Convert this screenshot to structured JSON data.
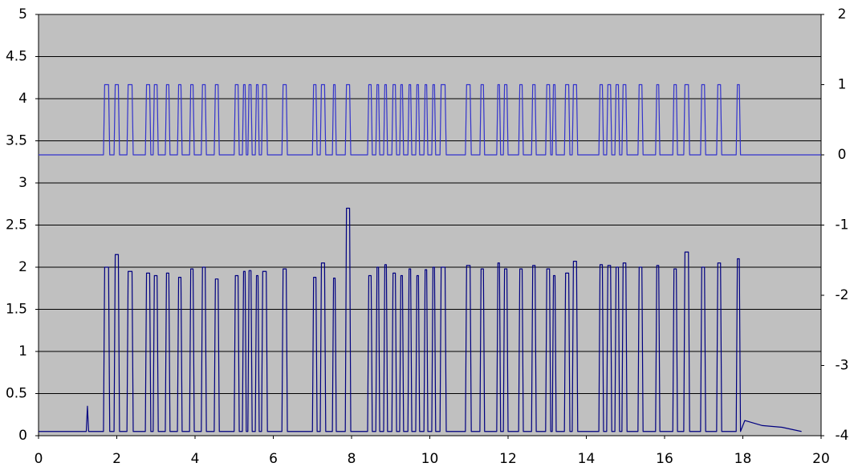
{
  "chart_data": {
    "type": "line",
    "x": [
      0,
      1.22,
      1.25,
      1.28,
      1.66,
      1.69,
      1.79,
      1.82,
      1.93,
      1.96,
      2.04,
      2.07,
      2.26,
      2.29,
      2.39,
      2.42,
      2.73,
      2.76,
      2.84,
      2.87,
      2.93,
      2.96,
      3.03,
      3.06,
      3.24,
      3.27,
      3.33,
      3.36,
      3.55,
      3.58,
      3.64,
      3.67,
      3.86,
      3.89,
      3.95,
      3.98,
      4.16,
      4.19,
      4.26,
      4.29,
      4.49,
      4.52,
      4.59,
      4.62,
      5.0,
      5.03,
      5.1,
      5.13,
      5.21,
      5.24,
      5.28,
      5.31,
      5.35,
      5.38,
      5.43,
      5.46,
      5.54,
      5.57,
      5.61,
      5.64,
      5.7,
      5.73,
      5.82,
      5.85,
      6.22,
      6.25,
      6.33,
      6.36,
      7.0,
      7.03,
      7.09,
      7.12,
      7.2,
      7.23,
      7.31,
      7.34,
      7.51,
      7.54,
      7.58,
      7.61,
      7.84,
      7.87,
      7.95,
      7.98,
      8.41,
      8.44,
      8.5,
      8.53,
      8.62,
      8.65,
      8.69,
      8.72,
      8.82,
      8.85,
      8.89,
      8.92,
      9.03,
      9.06,
      9.12,
      9.15,
      9.23,
      9.26,
      9.3,
      9.33,
      9.44,
      9.47,
      9.51,
      9.54,
      9.64,
      9.67,
      9.71,
      9.74,
      9.85,
      9.88,
      9.92,
      9.95,
      10.05,
      10.08,
      10.12,
      10.15,
      10.26,
      10.29,
      10.39,
      10.42,
      10.91,
      10.94,
      11.03,
      11.06,
      11.28,
      11.31,
      11.37,
      11.4,
      11.71,
      11.74,
      11.78,
      11.81,
      11.88,
      11.91,
      11.97,
      12.0,
      12.27,
      12.3,
      12.36,
      12.39,
      12.6,
      12.63,
      12.69,
      12.72,
      12.96,
      12.99,
      13.06,
      13.09,
      13.13,
      13.16,
      13.2,
      13.23,
      13.44,
      13.47,
      13.55,
      13.58,
      13.64,
      13.67,
      13.75,
      13.78,
      14.32,
      14.35,
      14.41,
      14.44,
      14.52,
      14.55,
      14.62,
      14.65,
      14.73,
      14.76,
      14.82,
      14.85,
      14.91,
      14.94,
      15.01,
      15.04,
      15.32,
      15.35,
      15.42,
      15.45,
      15.77,
      15.8,
      15.85,
      15.88,
      16.21,
      16.24,
      16.3,
      16.33,
      16.49,
      16.52,
      16.61,
      16.64,
      16.92,
      16.95,
      17.02,
      17.05,
      17.33,
      17.36,
      17.43,
      17.46,
      17.83,
      17.86,
      17.91,
      17.94,
      18.05,
      18.5,
      19,
      19.5,
      20
    ],
    "series": [
      {
        "color": "#000080",
        "values": [
          0.05,
          0.05,
          0.35,
          0.05,
          0.05,
          2.0,
          2.0,
          0.05,
          0.05,
          2.15,
          2.15,
          0.05,
          0.05,
          1.95,
          1.95,
          0.05,
          0.05,
          1.93,
          1.93,
          0.05,
          0.05,
          1.9,
          1.9,
          0.05,
          0.05,
          1.93,
          1.93,
          0.05,
          0.05,
          1.88,
          1.88,
          0.05,
          0.05,
          1.98,
          1.98,
          0.05,
          0.05,
          2.0,
          2.0,
          0.05,
          0.05,
          1.86,
          1.86,
          0.05,
          0.05,
          1.9,
          1.9,
          0.05,
          0.05,
          1.95,
          1.95,
          0.05,
          0.05,
          1.96,
          1.96,
          0.05,
          0.05,
          1.9,
          1.9,
          0.05,
          0.05,
          1.95,
          1.95,
          0.05,
          0.05,
          1.98,
          1.98,
          0.05,
          0.05,
          1.88,
          1.88,
          0.05,
          0.05,
          2.05,
          2.05,
          0.05,
          0.05,
          1.87,
          1.87,
          0.05,
          0.05,
          2.7,
          2.7,
          0.05,
          0.05,
          1.9,
          1.9,
          0.05,
          0.05,
          2.0,
          2.0,
          0.05,
          0.05,
          2.03,
          2.03,
          0.05,
          0.05,
          1.93,
          1.93,
          0.05,
          0.05,
          1.9,
          1.9,
          0.05,
          0.05,
          1.98,
          1.98,
          0.05,
          0.05,
          1.9,
          1.9,
          0.05,
          0.05,
          1.97,
          1.97,
          0.05,
          0.05,
          2.0,
          2.0,
          0.05,
          0.05,
          2.0,
          2.0,
          0.05,
          0.05,
          2.02,
          2.02,
          0.05,
          0.05,
          1.98,
          1.98,
          0.05,
          0.05,
          2.05,
          2.05,
          0.05,
          0.05,
          1.98,
          1.98,
          0.05,
          0.05,
          1.98,
          1.98,
          0.05,
          0.05,
          2.02,
          2.02,
          0.05,
          0.05,
          1.98,
          1.98,
          0.05,
          0.05,
          1.9,
          1.9,
          0.05,
          0.05,
          1.93,
          1.93,
          0.05,
          0.05,
          2.07,
          2.07,
          0.05,
          0.05,
          2.03,
          2.03,
          0.05,
          0.05,
          2.02,
          2.02,
          0.05,
          0.05,
          2.0,
          2.0,
          0.05,
          0.05,
          2.05,
          2.05,
          0.05,
          0.05,
          2.0,
          2.0,
          0.05,
          0.05,
          2.02,
          2.02,
          0.05,
          0.05,
          1.98,
          1.98,
          0.05,
          0.05,
          2.18,
          2.18,
          0.05,
          0.05,
          2.0,
          2.0,
          0.05,
          0.05,
          2.05,
          2.05,
          0.05,
          0.05,
          2.1,
          2.1,
          0.05,
          0.18,
          0.12,
          0.1,
          0.05,
          null
        ]
      },
      {
        "color": "#3333cc",
        "axis": "y2",
        "values": [
          0,
          0,
          0,
          0,
          0,
          1,
          1,
          0,
          0,
          1,
          1,
          0,
          0,
          1,
          1,
          0,
          0,
          1,
          1,
          0,
          0,
          1,
          1,
          0,
          0,
          1,
          1,
          0,
          0,
          1,
          1,
          0,
          0,
          1,
          1,
          0,
          0,
          1,
          1,
          0,
          0,
          1,
          1,
          0,
          0,
          1,
          1,
          0,
          0,
          1,
          1,
          0,
          0,
          1,
          1,
          0,
          0,
          1,
          1,
          0,
          0,
          1,
          1,
          0,
          0,
          1,
          1,
          0,
          0,
          1,
          1,
          0,
          0,
          1,
          1,
          0,
          0,
          1,
          1,
          0,
          0,
          1,
          1,
          0,
          0,
          1,
          1,
          0,
          0,
          1,
          1,
          0,
          0,
          1,
          1,
          0,
          0,
          1,
          1,
          0,
          0,
          1,
          1,
          0,
          0,
          1,
          1,
          0,
          0,
          1,
          1,
          0,
          0,
          1,
          1,
          0,
          0,
          1,
          1,
          0,
          0,
          1,
          1,
          0,
          0,
          1,
          1,
          0,
          0,
          1,
          1,
          0,
          0,
          1,
          1,
          0,
          0,
          1,
          1,
          0,
          0,
          1,
          1,
          0,
          0,
          1,
          1,
          0,
          0,
          1,
          1,
          0,
          0,
          1,
          1,
          0,
          0,
          1,
          1,
          0,
          0,
          1,
          1,
          0,
          0,
          1,
          1,
          0,
          0,
          1,
          1,
          0,
          0,
          1,
          1,
          0,
          0,
          1,
          1,
          0,
          0,
          1,
          1,
          0,
          0,
          1,
          1,
          0,
          0,
          1,
          1,
          0,
          0,
          1,
          1,
          0,
          0,
          1,
          1,
          0,
          0,
          1,
          1,
          0,
          0,
          1,
          1,
          0,
          0,
          0,
          0,
          0,
          0
        ]
      }
    ],
    "xlim": [
      0,
      20
    ],
    "xticks": [
      0,
      2,
      4,
      6,
      8,
      10,
      12,
      14,
      16,
      18,
      20
    ],
    "ylim": [
      0,
      5
    ],
    "yticks": [
      0,
      0.5,
      1,
      1.5,
      2,
      2.5,
      3,
      3.5,
      4,
      4.5,
      5
    ],
    "y2lim": [
      -4,
      2
    ],
    "y2ticks": [
      -4,
      -3,
      -2,
      -1,
      0,
      1,
      2
    ],
    "grid": true,
    "background": "#c0c0c0"
  }
}
